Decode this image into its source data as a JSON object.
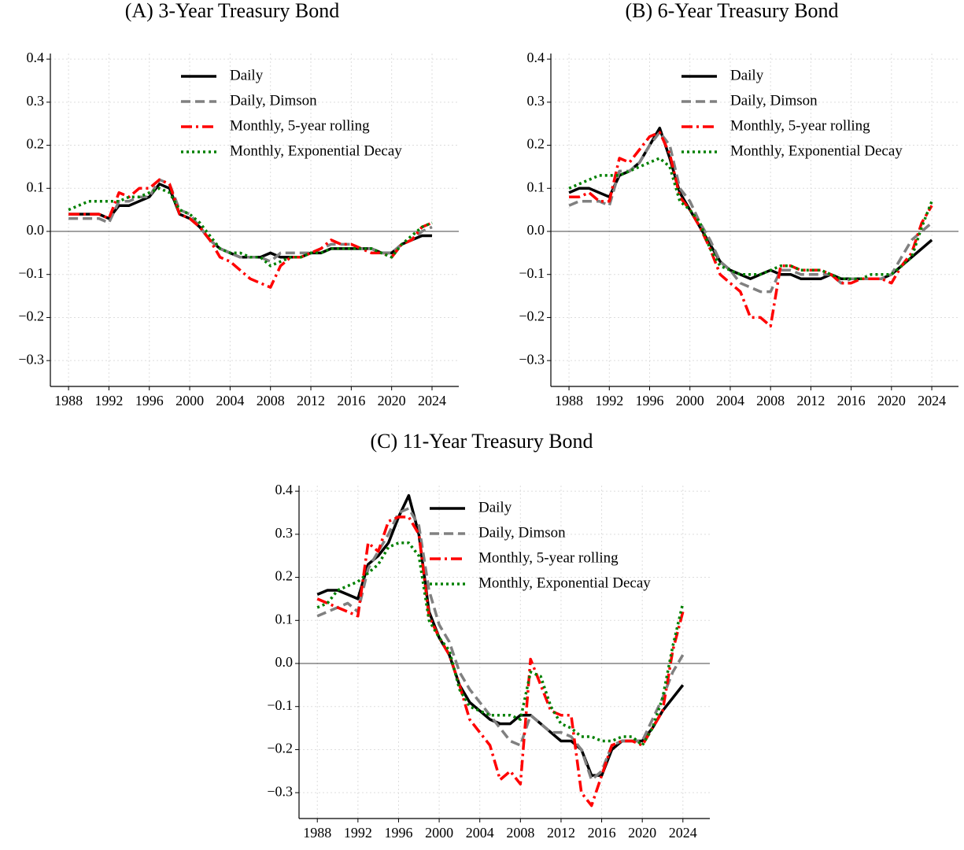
{
  "chart_data": [
    {
      "type": "line",
      "title": "(A) 3-Year Treasury Bond",
      "x": [
        1988,
        1989,
        1990,
        1991,
        1992,
        1993,
        1994,
        1995,
        1996,
        1997,
        1998,
        1999,
        2000,
        2001,
        2002,
        2003,
        2004,
        2005,
        2006,
        2007,
        2008,
        2009,
        2010,
        2011,
        2012,
        2013,
        2014,
        2015,
        2016,
        2017,
        2018,
        2019,
        2020,
        2021,
        2022,
        2023,
        2024
      ],
      "series": [
        {
          "name": "Daily",
          "color": "#000000",
          "linestyle": "solid",
          "values": [
            0.04,
            0.04,
            0.04,
            0.04,
            0.03,
            0.06,
            0.06,
            0.07,
            0.08,
            0.11,
            0.1,
            0.04,
            0.03,
            0.01,
            -0.02,
            -0.04,
            -0.05,
            -0.06,
            -0.06,
            -0.06,
            -0.05,
            -0.06,
            -0.06,
            -0.06,
            -0.05,
            -0.05,
            -0.04,
            -0.04,
            -0.04,
            -0.04,
            -0.04,
            -0.05,
            -0.05,
            -0.03,
            -0.02,
            -0.01,
            -0.01
          ]
        },
        {
          "name": "Daily, Dimson",
          "color": "#808080",
          "linestyle": "dashed",
          "values": [
            0.03,
            0.03,
            0.03,
            0.03,
            0.02,
            0.07,
            0.07,
            0.08,
            0.08,
            0.12,
            0.11,
            0.05,
            0.04,
            0.01,
            -0.02,
            -0.04,
            -0.05,
            -0.06,
            -0.06,
            -0.06,
            -0.07,
            -0.05,
            -0.05,
            -0.05,
            -0.05,
            -0.04,
            -0.03,
            -0.03,
            -0.03,
            -0.04,
            -0.04,
            -0.05,
            -0.05,
            -0.03,
            -0.02,
            0.0,
            0.01
          ]
        },
        {
          "name": "Monthly, 5-year rolling",
          "color": "#ff0000",
          "linestyle": "dashdot",
          "values": [
            0.04,
            0.04,
            0.04,
            0.04,
            0.03,
            0.09,
            0.08,
            0.1,
            0.1,
            0.12,
            0.11,
            0.04,
            0.03,
            0.01,
            -0.02,
            -0.06,
            -0.07,
            -0.09,
            -0.11,
            -0.12,
            -0.13,
            -0.08,
            -0.06,
            -0.06,
            -0.05,
            -0.04,
            -0.02,
            -0.03,
            -0.03,
            -0.04,
            -0.05,
            -0.05,
            -0.06,
            -0.03,
            -0.02,
            0.01,
            0.02
          ]
        },
        {
          "name": "Monthly, Exponential Decay",
          "color": "#008000",
          "linestyle": "dotted",
          "values": [
            0.05,
            0.06,
            0.07,
            0.07,
            0.07,
            0.07,
            0.08,
            0.08,
            0.09,
            0.1,
            0.09,
            0.05,
            0.04,
            0.02,
            -0.01,
            -0.04,
            -0.05,
            -0.05,
            -0.06,
            -0.06,
            -0.08,
            -0.07,
            -0.06,
            -0.06,
            -0.05,
            -0.05,
            -0.04,
            -0.04,
            -0.04,
            -0.04,
            -0.04,
            -0.05,
            -0.06,
            -0.03,
            -0.01,
            0.01,
            0.02
          ]
        }
      ],
      "xlim": [
        1986.2,
        2026.65
      ],
      "ylim": [
        -0.36,
        0.413
      ],
      "xticks": [
        1988,
        1992,
        1996,
        2000,
        2004,
        2008,
        2012,
        2016,
        2020,
        2024
      ],
      "yticks": [
        {
          "value": -0.3,
          "label": "−0.3"
        },
        {
          "value": -0.2,
          "label": "−0.2"
        },
        {
          "value": -0.1,
          "label": "−0.1"
        },
        {
          "value": 0,
          "label": "0.0"
        },
        0.1,
        0.2,
        0.3,
        0.4
      ],
      "hline": 0,
      "grid": true,
      "legend": "upper right"
    },
    {
      "type": "line",
      "title": "(B) 6-Year Treasury Bond",
      "x": [
        1988,
        1989,
        1990,
        1991,
        1992,
        1993,
        1994,
        1995,
        1996,
        1997,
        1998,
        1999,
        2000,
        2001,
        2002,
        2003,
        2004,
        2005,
        2006,
        2007,
        2008,
        2009,
        2010,
        2011,
        2012,
        2013,
        2014,
        2015,
        2016,
        2017,
        2018,
        2019,
        2020,
        2021,
        2022,
        2023,
        2024
      ],
      "series": [
        {
          "name": "Daily",
          "color": "#000000",
          "linestyle": "solid",
          "values": [
            0.09,
            0.1,
            0.1,
            0.09,
            0.08,
            0.13,
            0.14,
            0.16,
            0.2,
            0.24,
            0.17,
            0.09,
            0.05,
            0.01,
            -0.03,
            -0.07,
            -0.09,
            -0.1,
            -0.11,
            -0.1,
            -0.09,
            -0.1,
            -0.1,
            -0.11,
            -0.11,
            -0.11,
            -0.1,
            -0.11,
            -0.11,
            -0.11,
            -0.11,
            -0.11,
            -0.1,
            -0.08,
            -0.06,
            -0.04,
            -0.02
          ]
        },
        {
          "name": "Daily, Dimson",
          "color": "#808080",
          "linestyle": "dashed",
          "values": [
            0.06,
            0.07,
            0.07,
            0.07,
            0.06,
            0.14,
            0.14,
            0.16,
            0.2,
            0.23,
            0.2,
            0.1,
            0.07,
            0.02,
            -0.02,
            -0.07,
            -0.09,
            -0.12,
            -0.13,
            -0.14,
            -0.14,
            -0.09,
            -0.09,
            -0.1,
            -0.1,
            -0.1,
            -0.1,
            -0.12,
            -0.11,
            -0.11,
            -0.11,
            -0.11,
            -0.1,
            -0.06,
            -0.02,
            0.0,
            0.02
          ]
        },
        {
          "name": "Monthly, 5-year rolling",
          "color": "#ff0000",
          "linestyle": "dashdot",
          "values": [
            0.08,
            0.08,
            0.09,
            0.07,
            0.07,
            0.17,
            0.16,
            0.19,
            0.22,
            0.23,
            0.18,
            0.08,
            0.05,
            0.01,
            -0.04,
            -0.1,
            -0.12,
            -0.14,
            -0.2,
            -0.2,
            -0.22,
            -0.08,
            -0.08,
            -0.09,
            -0.09,
            -0.09,
            -0.1,
            -0.12,
            -0.12,
            -0.11,
            -0.11,
            -0.11,
            -0.12,
            -0.08,
            -0.05,
            0.02,
            0.06
          ]
        },
        {
          "name": "Monthly, Exponential Decay",
          "color": "#008000",
          "linestyle": "dotted",
          "values": [
            0.1,
            0.11,
            0.12,
            0.13,
            0.13,
            0.13,
            0.14,
            0.15,
            0.16,
            0.17,
            0.15,
            0.07,
            0.05,
            0.02,
            -0.04,
            -0.08,
            -0.09,
            -0.1,
            -0.1,
            -0.1,
            -0.09,
            -0.08,
            -0.08,
            -0.09,
            -0.09,
            -0.09,
            -0.1,
            -0.11,
            -0.11,
            -0.11,
            -0.1,
            -0.1,
            -0.1,
            -0.08,
            -0.06,
            0.01,
            0.07
          ]
        }
      ],
      "xlim": [
        1986.2,
        2026.65
      ],
      "ylim": [
        -0.36,
        0.413
      ],
      "xticks": [
        1988,
        1992,
        1996,
        2000,
        2004,
        2008,
        2012,
        2016,
        2020,
        2024
      ],
      "yticks": [
        {
          "value": -0.3,
          "label": "−0.3"
        },
        {
          "value": -0.2,
          "label": "−0.2"
        },
        {
          "value": -0.1,
          "label": "−0.1"
        },
        {
          "value": 0,
          "label": "0.0"
        },
        0.1,
        0.2,
        0.3,
        0.4
      ],
      "hline": 0,
      "grid": true,
      "legend": "upper right"
    },
    {
      "type": "line",
      "title": "(C) 11-Year Treasury Bond",
      "x": [
        1988,
        1989,
        1990,
        1991,
        1992,
        1993,
        1994,
        1995,
        1996,
        1997,
        1998,
        1999,
        2000,
        2001,
        2002,
        2003,
        2004,
        2005,
        2006,
        2007,
        2008,
        2009,
        2010,
        2011,
        2012,
        2013,
        2014,
        2015,
        2016,
        2017,
        2018,
        2019,
        2020,
        2021,
        2022,
        2023,
        2024
      ],
      "series": [
        {
          "name": "Daily",
          "color": "#000000",
          "linestyle": "solid",
          "values": [
            0.16,
            0.17,
            0.17,
            0.16,
            0.15,
            0.23,
            0.25,
            0.28,
            0.34,
            0.39,
            0.3,
            0.12,
            0.06,
            0.02,
            -0.05,
            -0.09,
            -0.11,
            -0.13,
            -0.14,
            -0.14,
            -0.12,
            -0.12,
            -0.14,
            -0.16,
            -0.18,
            -0.18,
            -0.2,
            -0.26,
            -0.26,
            -0.2,
            -0.18,
            -0.18,
            -0.18,
            -0.15,
            -0.11,
            -0.08,
            -0.05
          ]
        },
        {
          "name": "Daily, Dimson",
          "color": "#808080",
          "linestyle": "dashed",
          "values": [
            0.11,
            0.12,
            0.13,
            0.14,
            0.12,
            0.22,
            0.26,
            0.3,
            0.35,
            0.36,
            0.32,
            0.17,
            0.09,
            0.05,
            -0.02,
            -0.06,
            -0.09,
            -0.12,
            -0.15,
            -0.18,
            -0.19,
            -0.12,
            -0.14,
            -0.16,
            -0.16,
            -0.17,
            -0.2,
            -0.27,
            -0.25,
            -0.19,
            -0.18,
            -0.18,
            -0.18,
            -0.13,
            -0.08,
            -0.02,
            0.02
          ]
        },
        {
          "name": "Monthly, 5-year rolling",
          "color": "#ff0000",
          "linestyle": "dashdot",
          "values": [
            0.15,
            0.14,
            0.13,
            0.12,
            0.11,
            0.28,
            0.26,
            0.33,
            0.34,
            0.34,
            0.3,
            0.11,
            0.06,
            0.02,
            -0.05,
            -0.13,
            -0.16,
            -0.19,
            -0.27,
            -0.25,
            -0.28,
            0.01,
            -0.05,
            -0.11,
            -0.12,
            -0.12,
            -0.3,
            -0.33,
            -0.26,
            -0.19,
            -0.18,
            -0.18,
            -0.19,
            -0.15,
            -0.11,
            0.03,
            0.12
          ]
        },
        {
          "name": "Monthly, Exponential Decay",
          "color": "#008000",
          "linestyle": "dotted",
          "values": [
            0.13,
            0.14,
            0.17,
            0.18,
            0.19,
            0.21,
            0.23,
            0.27,
            0.28,
            0.28,
            0.25,
            0.1,
            0.06,
            0.03,
            -0.06,
            -0.1,
            -0.11,
            -0.12,
            -0.12,
            -0.12,
            -0.13,
            -0.02,
            -0.03,
            -0.1,
            -0.14,
            -0.15,
            -0.17,
            -0.17,
            -0.18,
            -0.18,
            -0.17,
            -0.17,
            -0.19,
            -0.15,
            -0.08,
            0.04,
            0.14
          ]
        }
      ],
      "xlim": [
        1986.2,
        2026.65
      ],
      "ylim": [
        -0.36,
        0.413
      ],
      "xticks": [
        1988,
        1992,
        1996,
        2000,
        2004,
        2008,
        2012,
        2016,
        2020,
        2024
      ],
      "yticks": [
        {
          "value": -0.3,
          "label": "−0.3"
        },
        {
          "value": -0.2,
          "label": "−0.2"
        },
        {
          "value": -0.1,
          "label": "−0.1"
        },
        {
          "value": 0,
          "label": "0.0"
        },
        0.1,
        0.2,
        0.3,
        0.4
      ],
      "hline": 0,
      "grid": true,
      "legend": "upper right"
    }
  ]
}
